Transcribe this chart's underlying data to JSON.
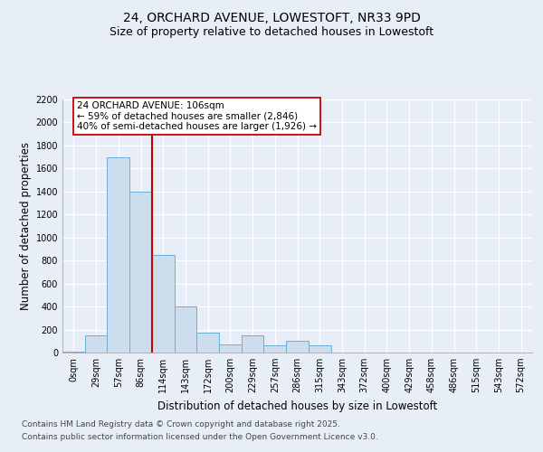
{
  "title": "24, ORCHARD AVENUE, LOWESTOFT, NR33 9PD",
  "subtitle": "Size of property relative to detached houses in Lowestoft",
  "xlabel": "Distribution of detached houses by size in Lowestoft",
  "ylabel": "Number of detached properties",
  "categories": [
    "0sqm",
    "29sqm",
    "57sqm",
    "86sqm",
    "114sqm",
    "143sqm",
    "172sqm",
    "200sqm",
    "229sqm",
    "257sqm",
    "286sqm",
    "315sqm",
    "343sqm",
    "372sqm",
    "400sqm",
    "429sqm",
    "458sqm",
    "486sqm",
    "515sqm",
    "543sqm",
    "572sqm"
  ],
  "values": [
    5,
    150,
    1700,
    1400,
    850,
    400,
    175,
    70,
    150,
    60,
    100,
    60,
    0,
    0,
    0,
    0,
    0,
    0,
    0,
    0,
    0
  ],
  "bar_color": "#ccdded",
  "bar_edge_color": "#6aaed6",
  "vline_color": "#cc0000",
  "annotation_text": "24 ORCHARD AVENUE: 106sqm\n← 59% of detached houses are smaller (2,846)\n40% of semi-detached houses are larger (1,926) →",
  "annotation_box_color": "#ffffff",
  "annotation_box_edge": "#cc0000",
  "ylim": [
    0,
    2200
  ],
  "yticks": [
    0,
    200,
    400,
    600,
    800,
    1000,
    1200,
    1400,
    1600,
    1800,
    2000,
    2200
  ],
  "footer1": "Contains HM Land Registry data © Crown copyright and database right 2025.",
  "footer2": "Contains public sector information licensed under the Open Government Licence v3.0.",
  "bg_color": "#e8eef8",
  "plot_bg_color": "#e8eef8",
  "grid_color": "#ffffff",
  "title_fontsize": 10,
  "subtitle_fontsize": 9,
  "axis_label_fontsize": 8.5,
  "tick_fontsize": 7,
  "annotation_fontsize": 7.5,
  "footer_fontsize": 6.5
}
